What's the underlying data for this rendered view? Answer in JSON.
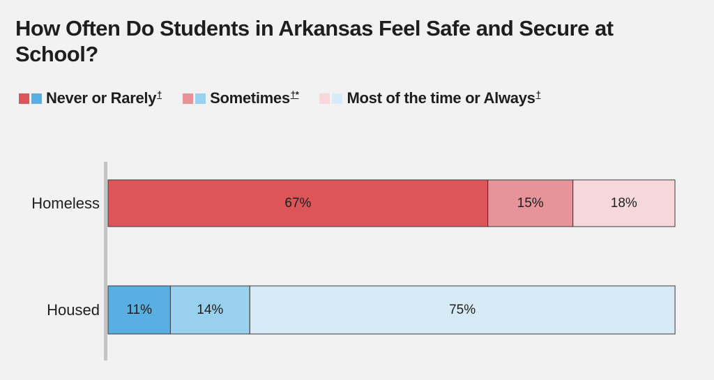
{
  "chart_data": {
    "type": "bar",
    "orientation": "horizontal",
    "stacked": true,
    "title": "How Often Do Students in Arkansas Feel Safe and Secure at School?",
    "categories": [
      "Homeless",
      "Housed"
    ],
    "series": [
      {
        "name": "Never or Rarely",
        "footnote": "†",
        "values": [
          67,
          11
        ],
        "colors": [
          "#dc5559",
          "#5aafe2"
        ]
      },
      {
        "name": "Sometimes",
        "footnote": "†*",
        "values": [
          15,
          14
        ],
        "colors": [
          "#e6939a",
          "#99d0ee"
        ]
      },
      {
        "name": "Most of the time or Always",
        "footnote": "†",
        "values": [
          18,
          75
        ],
        "colors": [
          "#f6d8dc",
          "#d7ebf6"
        ]
      }
    ],
    "value_suffix": "%",
    "xlim": [
      0,
      100
    ],
    "grid": false,
    "legend_position": "top-left"
  }
}
